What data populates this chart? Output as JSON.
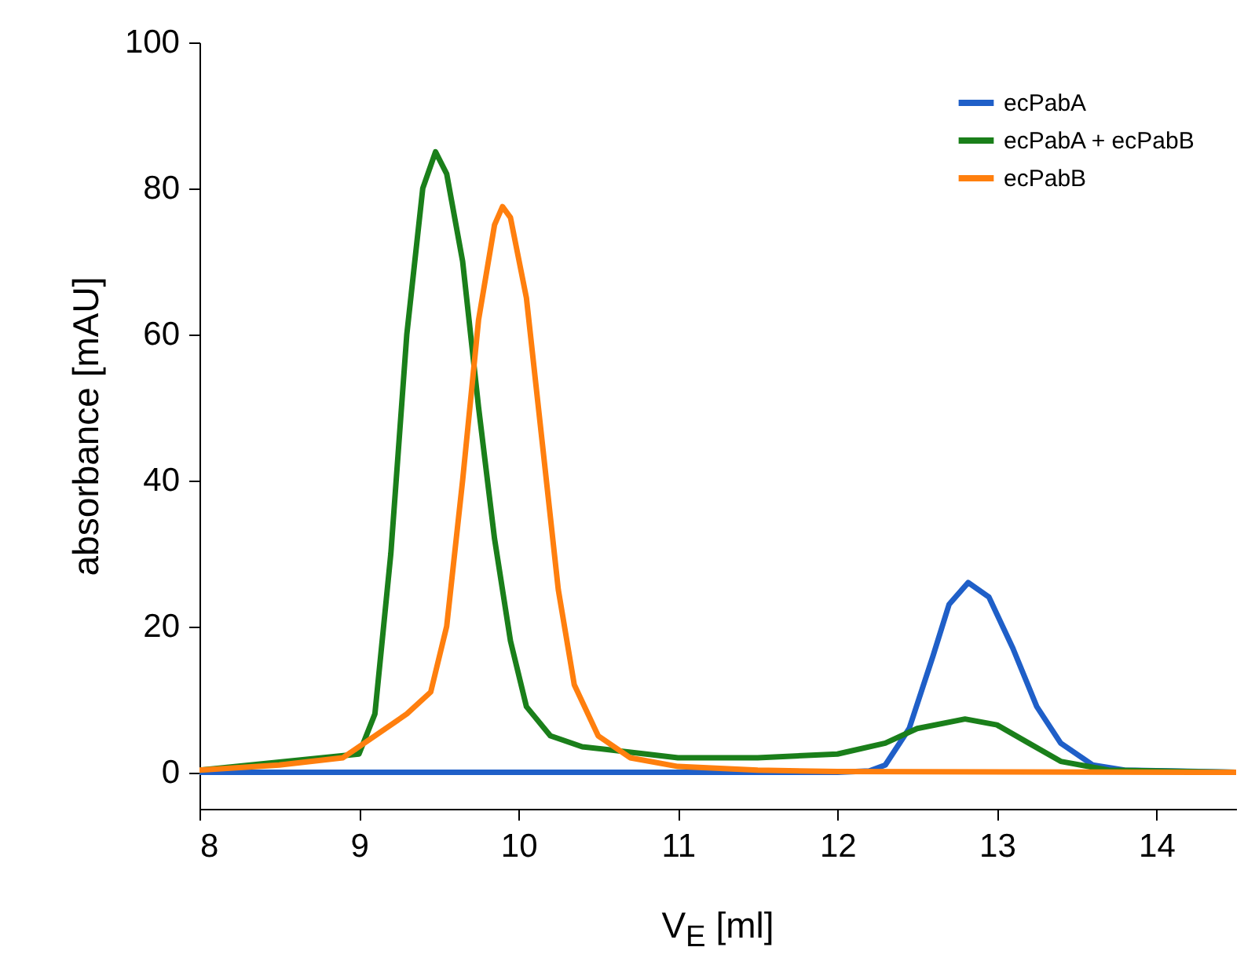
{
  "chart_data": {
    "type": "line",
    "xlabel": "V$_{E}$ [ml]",
    "ylabel": "absorbance [mAU]",
    "xlim": [
      8,
      14.5
    ],
    "xticks": [
      8,
      9,
      10,
      11,
      12,
      13,
      14
    ],
    "ylim": [
      -5,
      100
    ],
    "yticks": [
      0,
      20,
      40,
      60,
      80,
      100
    ],
    "grid": false,
    "legend": "top right",
    "marker": "none",
    "line_style": "solid",
    "series": [
      {
        "name": "ecPabA",
        "color": "#1f5fc8",
        "x": [
          8,
          9,
          10,
          11,
          12,
          12.2,
          12.3,
          12.45,
          12.6,
          12.7,
          12.82,
          12.95,
          13.1,
          13.25,
          13.4,
          13.6,
          13.8,
          14.5
        ],
        "values": [
          0,
          0,
          0,
          0,
          0,
          0.2,
          1,
          6,
          16,
          23,
          26,
          24,
          17,
          9,
          4,
          1,
          0.3,
          0
        ]
      },
      {
        "name": "ecPabA + ecPabB",
        "color": "#1a7f1a",
        "x": [
          8,
          9,
          9.1,
          9.2,
          9.3,
          9.4,
          9.48,
          9.55,
          9.65,
          9.75,
          9.85,
          9.95,
          10.05,
          10.2,
          10.4,
          10.8,
          11,
          11.5,
          12,
          12.3,
          12.5,
          12.8,
          13,
          13.2,
          13.4,
          13.7,
          14.5
        ],
        "values": [
          0.3,
          2.5,
          8,
          30,
          60,
          80,
          85,
          82,
          70,
          50,
          32,
          18,
          9,
          5,
          3.5,
          2.5,
          2,
          2,
          2.5,
          4,
          6,
          7.3,
          6.5,
          4,
          1.5,
          0.3,
          0
        ]
      },
      {
        "name": "ecPabB",
        "color": "#ff7f0e",
        "x": [
          8,
          8.5,
          8.9,
          9.1,
          9.3,
          9.45,
          9.55,
          9.65,
          9.75,
          9.85,
          9.9,
          9.95,
          10.05,
          10.15,
          10.25,
          10.35,
          10.5,
          10.7,
          11,
          11.5,
          12,
          14.5
        ],
        "values": [
          0.3,
          1,
          2,
          5,
          8,
          11,
          20,
          40,
          62,
          75,
          77.5,
          76,
          65,
          45,
          25,
          12,
          5,
          2,
          0.8,
          0.3,
          0.1,
          0
        ]
      }
    ]
  }
}
